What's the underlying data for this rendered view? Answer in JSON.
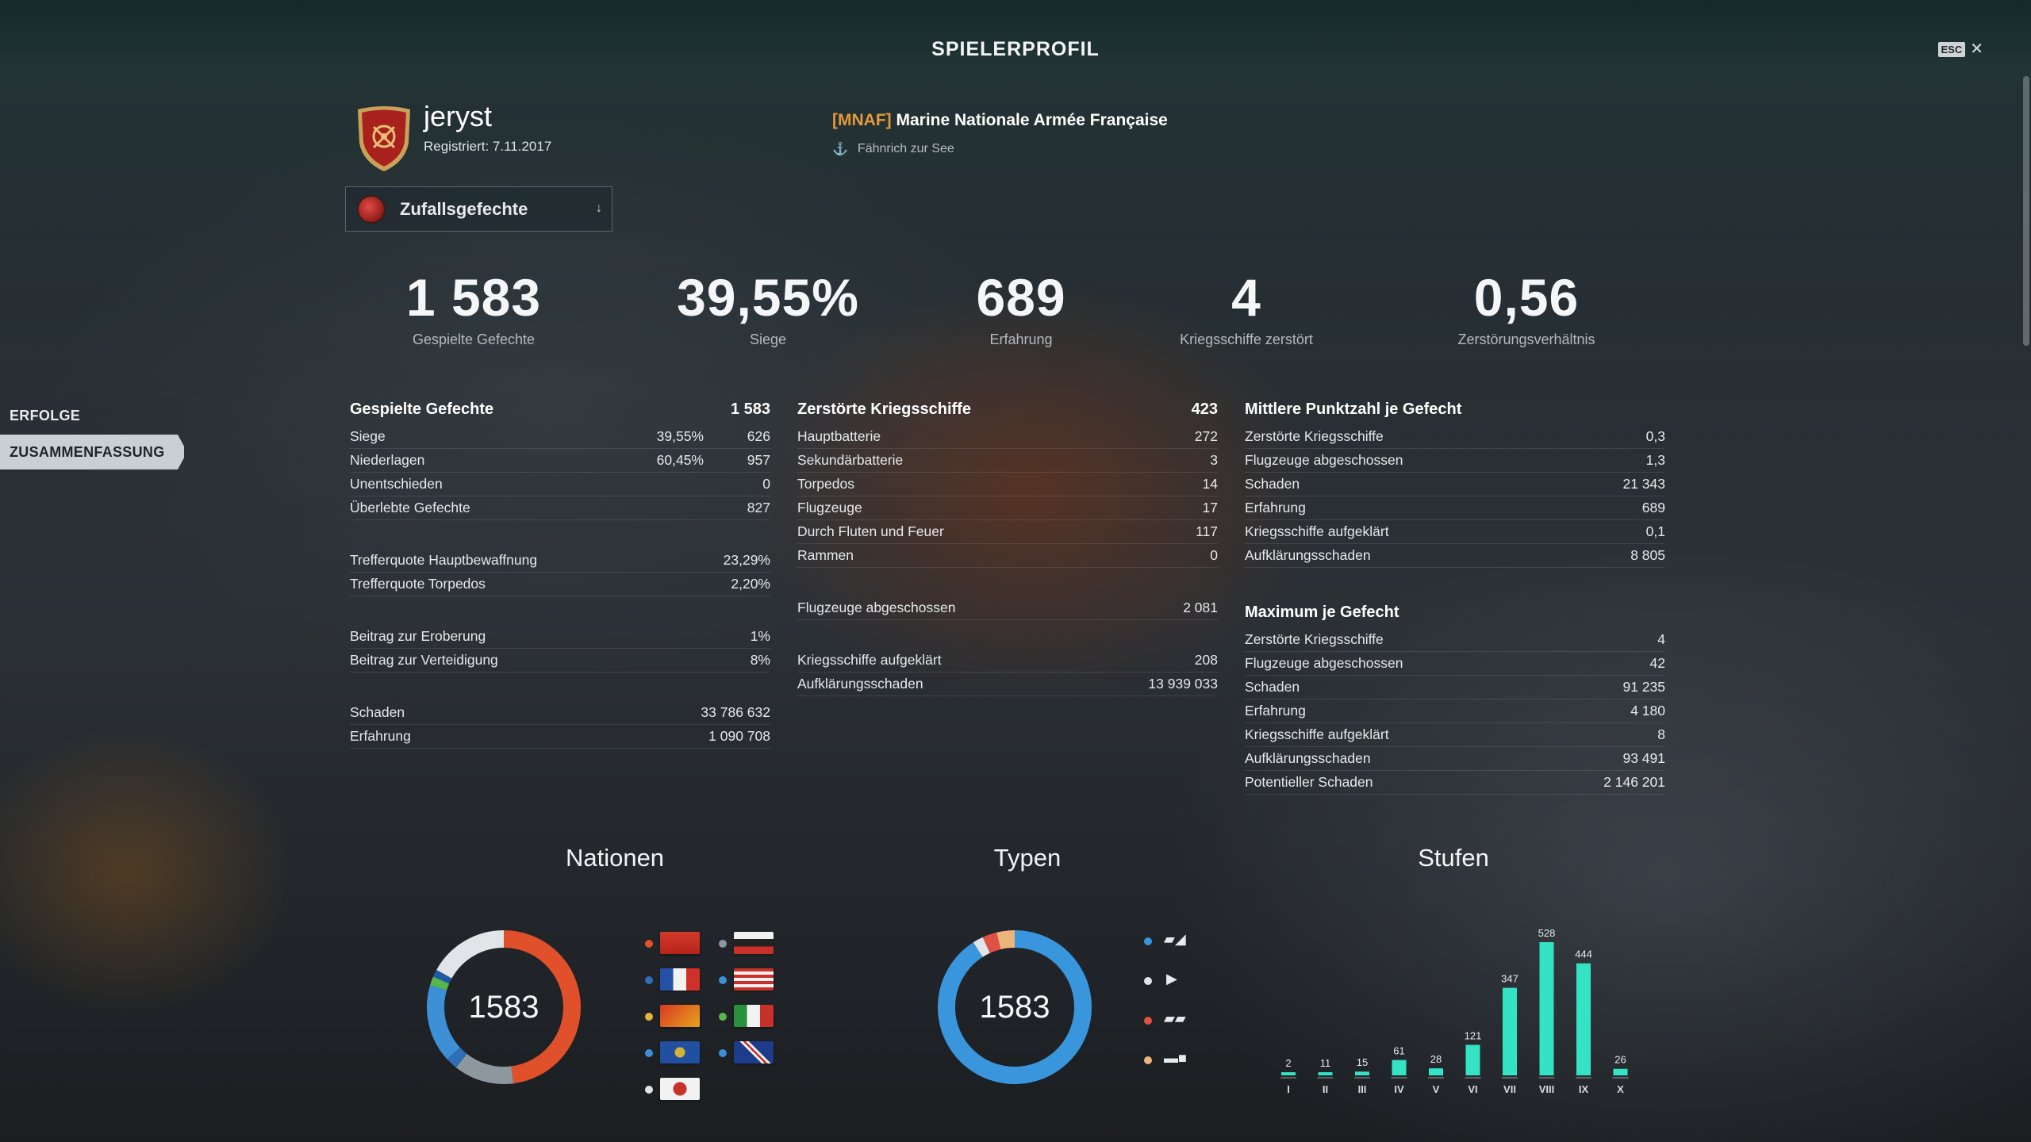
{
  "header": {
    "title": "SPIELERPROFIL",
    "esc": "ESC"
  },
  "sidebar": {
    "tabs": [
      {
        "label": "ERFOLGE"
      },
      {
        "label": "ZUSAMMENFASSUNG",
        "active": true
      }
    ]
  },
  "player": {
    "name": "jeryst",
    "registered": "Registriert: 7.11.2017"
  },
  "clan": {
    "tag": "[MNAF]",
    "name": "Marine Nationale Armée Française",
    "rank": "Fähnrich zur See"
  },
  "mode": {
    "label": "Zufallsgefechte"
  },
  "headline": [
    {
      "value": "1 583",
      "label": "Gespielte Gefechte"
    },
    {
      "value": "39,55%",
      "label": "Siege"
    },
    {
      "value": "689",
      "label": "Erfahrung"
    },
    {
      "value": "4",
      "label": "Kriegsschiffe zerstört"
    },
    {
      "value": "0,56",
      "label": "Zerstörungsverhältnis"
    }
  ],
  "battles": {
    "title": "Gespielte Gefechte",
    "total": "1 583",
    "rows": [
      {
        "label": "Siege",
        "pct": "39,55%",
        "value": "626"
      },
      {
        "label": "Niederlagen",
        "pct": "60,45%",
        "value": "957"
      },
      {
        "label": "Unentschieden",
        "value": "0"
      },
      {
        "label": "Überlebte Gefechte",
        "value": "827"
      },
      {
        "label": "Trefferquote Hauptbewaffnung",
        "value": "23,29%"
      },
      {
        "label": "Trefferquote Torpedos",
        "value": "2,20%"
      },
      {
        "label": "Beitrag zur Eroberung",
        "value": "1%"
      },
      {
        "label": "Beitrag zur Verteidigung",
        "value": "8%"
      },
      {
        "label": "Schaden",
        "value": "33 786 632"
      },
      {
        "label": "Erfahrung",
        "value": "1 090 708"
      }
    ]
  },
  "destroyed": {
    "title": "Zerstörte Kriegsschiffe",
    "total": "423",
    "rows": [
      {
        "label": "Hauptbatterie",
        "value": "272"
      },
      {
        "label": "Sekundärbatterie",
        "value": "3"
      },
      {
        "label": "Torpedos",
        "value": "14"
      },
      {
        "label": "Flugzeuge",
        "value": "17"
      },
      {
        "label": "Durch Fluten und Feuer",
        "value": "117"
      },
      {
        "label": "Rammen",
        "value": "0"
      },
      {
        "label": "Flugzeuge abgeschossen",
        "value": "2 081"
      },
      {
        "label": "Kriegsschiffe aufgeklärt",
        "value": "208"
      },
      {
        "label": "Aufklärungsschaden",
        "value": "13 939 033"
      }
    ]
  },
  "average": {
    "title": "Mittlere Punktzahl je Gefecht",
    "rows": [
      {
        "label": "Zerstörte Kriegsschiffe",
        "value": "0,3"
      },
      {
        "label": "Flugzeuge abgeschossen",
        "value": "1,3"
      },
      {
        "label": "Schaden",
        "value": "21 343"
      },
      {
        "label": "Erfahrung",
        "value": "689"
      },
      {
        "label": "Kriegsschiffe aufgeklärt",
        "value": "0,1"
      },
      {
        "label": "Aufklärungsschaden",
        "value": "8 805"
      }
    ]
  },
  "maximum": {
    "title": "Maximum je Gefecht",
    "rows": [
      {
        "label": "Zerstörte Kriegsschiffe",
        "value": "4"
      },
      {
        "label": "Flugzeuge abgeschossen",
        "value": "42"
      },
      {
        "label": "Schaden",
        "value": "91 235"
      },
      {
        "label": "Erfahrung",
        "value": "4 180"
      },
      {
        "label": "Kriegsschiffe aufgeklärt",
        "value": "8"
      },
      {
        "label": "Aufklärungsschaden",
        "value": "93 491"
      },
      {
        "label": "Potentieller Schaden",
        "value": "2 146 201"
      }
    ]
  },
  "charts": {
    "nations": {
      "title": "Nationen",
      "center": "1583",
      "segments": [
        {
          "color": "#e0512b",
          "value": 760
        },
        {
          "color": "#8c979e",
          "value": 200
        },
        {
          "color": "#2e6fb8",
          "value": 40
        },
        {
          "color": "#3d8fd6",
          "value": 260
        },
        {
          "color": "#56b84c",
          "value": 30
        },
        {
          "color": "#1f5aa8",
          "value": 25
        },
        {
          "color": "#e2e5e8",
          "value": 268
        }
      ],
      "legend_colors": [
        "#e0512b",
        "#8c979e",
        "#2e6fb8",
        "#3d8fd6",
        "#e3b63a",
        "#56b84c",
        "#3d8fd6",
        "#3d8fd6",
        "#e2e5e8"
      ]
    },
    "types": {
      "title": "Typen",
      "center": "1583",
      "segments": [
        {
          "color": "#3996dc",
          "value": 1440
        },
        {
          "color": "#e2e5e8",
          "value": 35
        },
        {
          "color": "#e05045",
          "value": 48
        },
        {
          "color": "#eeb57a",
          "value": 60
        }
      ],
      "legend_colors": [
        "#3996dc",
        "#e2e5e8",
        "#e05045",
        "#eeb57a"
      ]
    },
    "tiers": {
      "title": "Stufen"
    }
  },
  "chart_data": {
    "type": "bar",
    "categories": [
      "I",
      "II",
      "III",
      "IV",
      "V",
      "VI",
      "VII",
      "VIII",
      "IX",
      "X"
    ],
    "values": [
      2,
      11,
      15,
      61,
      28,
      121,
      347,
      528,
      444,
      26
    ],
    "title": "Stufen",
    "color": "#34e3c4"
  }
}
